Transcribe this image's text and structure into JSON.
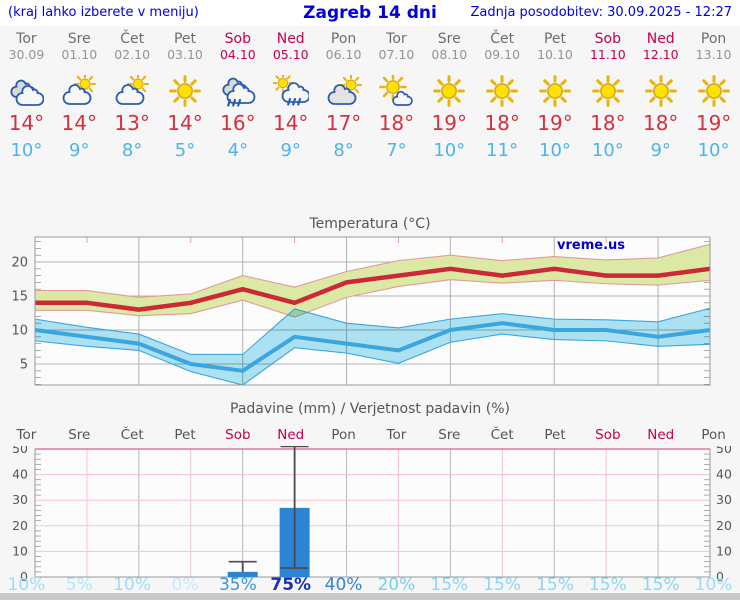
{
  "header": {
    "left_note": "(kraj lahko izberete v meniju)",
    "title": "Zagreb 14 dni",
    "updated": "Zadnja posodobitev: 30.09.2025 - 12:27"
  },
  "watermark": "vreme.us",
  "colors": {
    "header_blue": "#0000dd",
    "day_name": "#6e6e6e",
    "day_date": "#949494",
    "weekend": "#c4004f",
    "tmax_red": "#d5303e",
    "tmin_blue": "#4fb4e8",
    "axis_text": "#555555",
    "bar_blue": "#2b84d4"
  },
  "days": [
    {
      "name": "Tor",
      "date": "30.09",
      "weekend": false,
      "icon": "cloudy",
      "tmax": "14°",
      "tmin": "10°",
      "prob": "10%",
      "prob_color": "#9bdef4",
      "prob_bold": false
    },
    {
      "name": "Sre",
      "date": "01.10",
      "weekend": false,
      "icon": "sun-cloud",
      "tmax": "14°",
      "tmin": "9°",
      "prob": "5%",
      "prob_color": "#b0e6f8",
      "prob_bold": false
    },
    {
      "name": "Čet",
      "date": "02.10",
      "weekend": false,
      "icon": "sun-cloud",
      "tmax": "13°",
      "tmin": "8°",
      "prob": "10%",
      "prob_color": "#9bdef4",
      "prob_bold": false
    },
    {
      "name": "Pet",
      "date": "03.10",
      "weekend": false,
      "icon": "sunny",
      "tmax": "14°",
      "tmin": "5°",
      "prob": "0%",
      "prob_color": "#c4edfa",
      "prob_bold": false
    },
    {
      "name": "Sob",
      "date": "04.10",
      "weekend": true,
      "icon": "rain",
      "tmax": "16°",
      "tmin": "4°",
      "prob": "35%",
      "prob_color": "#3f93d7",
      "prob_bold": false
    },
    {
      "name": "Ned",
      "date": "05.10",
      "weekend": true,
      "icon": "sun-rain",
      "tmax": "14°",
      "tmin": "9°",
      "prob": "75%",
      "prob_color": "#2030b4",
      "prob_bold": true
    },
    {
      "name": "Pon",
      "date": "06.10",
      "weekend": false,
      "icon": "cloud-sun",
      "tmax": "17°",
      "tmin": "8°",
      "prob": "40%",
      "prob_color": "#3581d2",
      "prob_bold": false
    },
    {
      "name": "Tor",
      "date": "07.10",
      "weekend": false,
      "icon": "mostly-sunny",
      "tmax": "18°",
      "tmin": "7°",
      "prob": "20%",
      "prob_color": "#79cfee",
      "prob_bold": false
    },
    {
      "name": "Sre",
      "date": "08.10",
      "weekend": false,
      "icon": "sunny",
      "tmax": "19°",
      "tmin": "10°",
      "prob": "15%",
      "prob_color": "#8cd7f1",
      "prob_bold": false
    },
    {
      "name": "Čet",
      "date": "09.10",
      "weekend": false,
      "icon": "sunny",
      "tmax": "18°",
      "tmin": "11°",
      "prob": "15%",
      "prob_color": "#8cd7f1",
      "prob_bold": false
    },
    {
      "name": "Pet",
      "date": "10.10",
      "weekend": false,
      "icon": "sunny",
      "tmax": "19°",
      "tmin": "10°",
      "prob": "15%",
      "prob_color": "#8cd7f1",
      "prob_bold": false
    },
    {
      "name": "Sob",
      "date": "11.10",
      "weekend": true,
      "icon": "sunny",
      "tmax": "18°",
      "tmin": "10°",
      "prob": "15%",
      "prob_color": "#8cd7f1",
      "prob_bold": false
    },
    {
      "name": "Ned",
      "date": "12.10",
      "weekend": true,
      "icon": "sunny",
      "tmax": "18°",
      "tmin": "9°",
      "prob": "15%",
      "prob_color": "#8cd7f1",
      "prob_bold": false
    },
    {
      "name": "Pon",
      "date": "13.10",
      "weekend": false,
      "icon": "sunny",
      "tmax": "19°",
      "tmin": "10°",
      "prob": "10%",
      "prob_color": "#9bdef4",
      "prob_bold": false
    }
  ],
  "chart_data": [
    {
      "type": "line",
      "title": "Temperatura (°C)",
      "x": [
        "Tor 30.09",
        "Sre 01.10",
        "Čet 02.10",
        "Pet 03.10",
        "Sob 04.10",
        "Ned 05.10",
        "Pon 06.10",
        "Tor 07.10",
        "Sre 08.10",
        "Čet 09.10",
        "Pet 10.10",
        "Sob 11.10",
        "Ned 12.10",
        "Pon 13.10"
      ],
      "yticks": [
        20,
        15,
        10,
        5
      ],
      "ylim": [
        2,
        23.5
      ],
      "grid": true,
      "legend": "none",
      "series": [
        {
          "name": "max_temp_range",
          "upper": [
            15.8,
            15.8,
            14.8,
            15.3,
            18.0,
            16.3,
            18.6,
            20.2,
            21.0,
            20.2,
            20.8,
            20.3,
            20.6,
            22.6
          ],
          "lower": [
            12.9,
            12.9,
            12.1,
            12.4,
            14.4,
            11.9,
            14.8,
            16.4,
            17.4,
            16.9,
            17.3,
            16.8,
            16.6,
            17.3
          ],
          "fill": "#dce9a4",
          "edge": "#e39a9a",
          "blend": false
        },
        {
          "name": "min_temp_range",
          "upper": [
            11.6,
            10.4,
            9.4,
            6.4,
            6.4,
            13.1,
            11.0,
            10.3,
            11.6,
            12.4,
            11.6,
            11.5,
            11.2,
            13.2
          ],
          "lower": [
            8.4,
            7.6,
            7.0,
            3.9,
            1.9,
            7.4,
            6.6,
            5.1,
            8.2,
            9.4,
            8.6,
            8.4,
            7.6,
            7.9
          ],
          "fill": "#ade4f4",
          "edge": "#3aa5df",
          "blend": true
        },
        {
          "name": "max_temp",
          "values": [
            14,
            14,
            13,
            14,
            16,
            14,
            17,
            18,
            19,
            18,
            19,
            18,
            18,
            19
          ],
          "color": "#cc2936",
          "width": 4.5
        },
        {
          "name": "min_temp",
          "values": [
            10,
            9,
            8,
            5,
            4,
            9,
            8,
            7,
            10,
            11,
            10,
            10,
            9,
            10
          ],
          "color": "#3aa5df",
          "width": 4
        }
      ]
    },
    {
      "type": "bar",
      "title": "Padavine (mm) / Verjetnost padavin (%)",
      "categories": [
        "Tor",
        "Sre",
        "Čet",
        "Pet",
        "Sob",
        "Ned",
        "Pon",
        "Tor",
        "Sre",
        "Čet",
        "Pet",
        "Sob",
        "Ned",
        "Pon"
      ],
      "values": [
        0,
        0,
        0,
        0,
        2,
        27,
        0,
        0,
        0,
        0,
        0,
        0,
        0,
        0
      ],
      "whisker_high": [
        null,
        null,
        null,
        null,
        6,
        51,
        null,
        null,
        null,
        null,
        null,
        null,
        null,
        null
      ],
      "whisker_low": [
        null,
        null,
        null,
        null,
        0,
        3.5,
        null,
        null,
        null,
        null,
        null,
        null,
        null,
        null
      ],
      "probabilities_pct": [
        10,
        5,
        10,
        0,
        35,
        75,
        40,
        20,
        15,
        15,
        15,
        15,
        15,
        10
      ],
      "yticks": [
        0,
        10,
        20,
        30,
        40,
        50
      ],
      "ylim": [
        0,
        52
      ],
      "bar_color": "#2b84d4",
      "grid": true
    }
  ]
}
